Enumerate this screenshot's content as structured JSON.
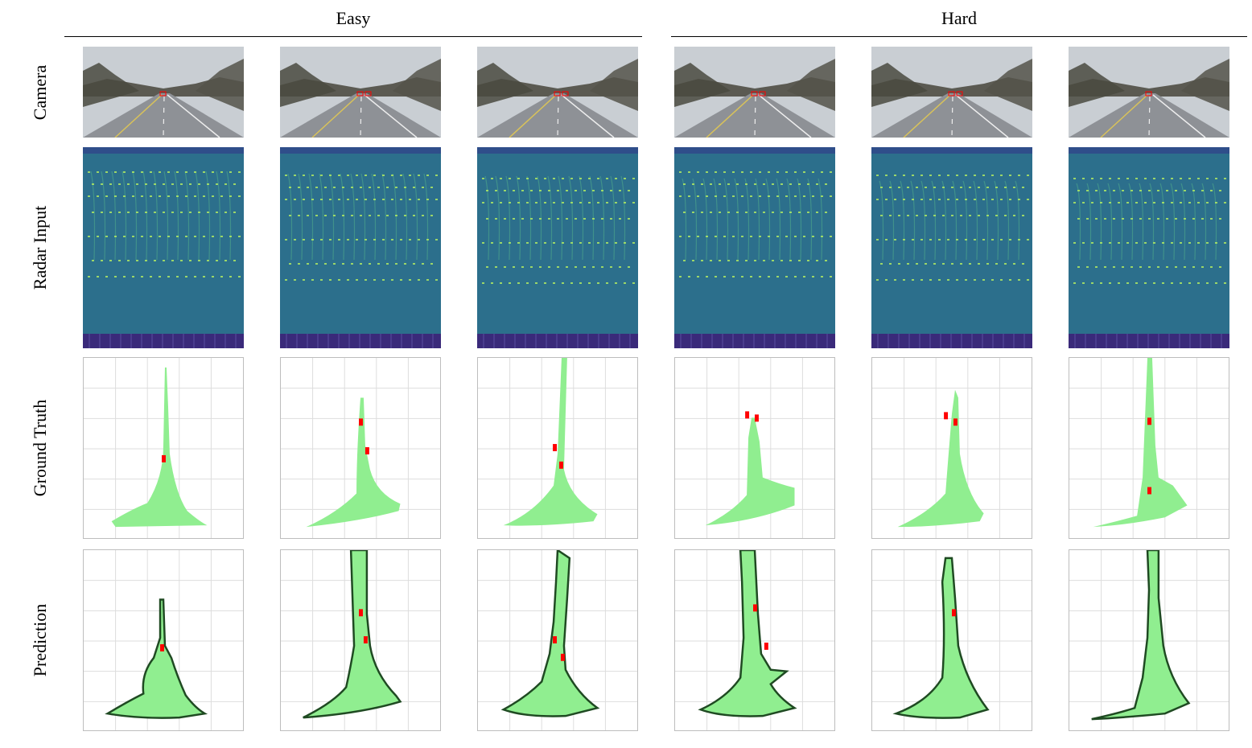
{
  "column_groups": [
    {
      "label": "Easy"
    },
    {
      "label": "Hard"
    }
  ],
  "rows": [
    {
      "label": "Camera"
    },
    {
      "label": "Radar Input"
    },
    {
      "label": "Ground Truth"
    },
    {
      "label": "Prediction"
    }
  ],
  "colors": {
    "free_space": "#90ee90",
    "vehicle": "#ff0000",
    "grid": "#dddddd",
    "radar_background": "#2c6f8c",
    "radar_highlight": "#b8f060",
    "radar_floor": "#3a2a7a",
    "prediction_edge": "#1f4a22"
  }
}
